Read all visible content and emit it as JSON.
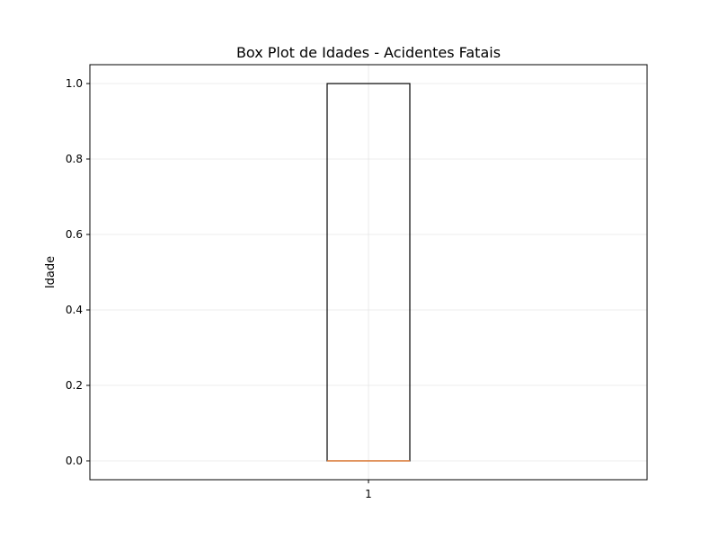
{
  "chart_data": {
    "type": "box",
    "title": "Box Plot de Idades - Acidentes Fatais",
    "xlabel": "",
    "ylabel": "Idade",
    "ylim": [
      -0.05,
      1.05
    ],
    "grid": true,
    "categories": [
      "1"
    ],
    "boxes": [
      {
        "category": "1",
        "whisker_low": 0.0,
        "q1": 0.0,
        "median": 0.0,
        "q3": 1.0,
        "whisker_high": 1.0
      }
    ],
    "yticks": [
      {
        "value": 0.0,
        "label": "0.0"
      },
      {
        "value": 0.2,
        "label": "0.2"
      },
      {
        "value": 0.4,
        "label": "0.4"
      },
      {
        "value": 0.6,
        "label": "0.6"
      },
      {
        "value": 0.8,
        "label": "0.8"
      },
      {
        "value": 1.0,
        "label": "1.0"
      }
    ],
    "colors": {
      "box": "#000000",
      "median": "#e8813b",
      "grid": "#e6e6e6"
    }
  }
}
